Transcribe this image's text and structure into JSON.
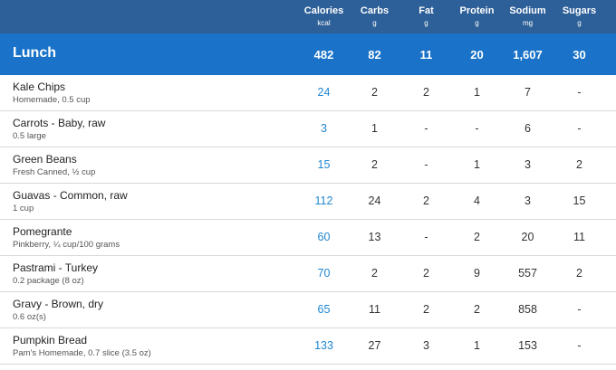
{
  "header": {
    "columns": [
      {
        "title": "Calories",
        "unit": "kcal"
      },
      {
        "title": "Carbs",
        "unit": "g"
      },
      {
        "title": "Fat",
        "unit": "g"
      },
      {
        "title": "Protein",
        "unit": "g"
      },
      {
        "title": "Sodium",
        "unit": "mg"
      },
      {
        "title": "Sugars",
        "unit": "g"
      }
    ]
  },
  "meal": {
    "title": "Lunch",
    "totals": [
      "482",
      "82",
      "11",
      "20",
      "1,607",
      "30"
    ]
  },
  "foods": [
    {
      "name": "Kale Chips",
      "desc": "Homemade, 0.5 cup",
      "values": [
        "24",
        "2",
        "2",
        "1",
        "7",
        "-"
      ]
    },
    {
      "name": "Carrots - Baby, raw",
      "desc": "0.5 large",
      "values": [
        "3",
        "1",
        "-",
        "-",
        "6",
        "-"
      ]
    },
    {
      "name": "Green Beans",
      "desc": "Fresh Canned, ½ cup",
      "values": [
        "15",
        "2",
        "-",
        "1",
        "3",
        "2"
      ]
    },
    {
      "name": "Guavas - Common, raw",
      "desc": "1 cup",
      "values": [
        "112",
        "24",
        "2",
        "4",
        "3",
        "15"
      ]
    },
    {
      "name": "Pomegrante",
      "desc": "Pinkberry, ¼ cup/100 grams",
      "values": [
        "60",
        "13",
        "-",
        "2",
        "20",
        "11"
      ]
    },
    {
      "name": "Pastrami - Turkey",
      "desc": "0.2 package (8 oz)",
      "values": [
        "70",
        "2",
        "2",
        "9",
        "557",
        "2"
      ]
    },
    {
      "name": "Gravy - Brown, dry",
      "desc": "0.6 oz(s)",
      "values": [
        "65",
        "11",
        "2",
        "2",
        "858",
        "-"
      ]
    },
    {
      "name": "Pumpkin Bread",
      "desc": "Pam's Homemade, 0.7 slice (3.5 oz)",
      "values": [
        "133",
        "27",
        "3",
        "1",
        "153",
        "-"
      ]
    }
  ]
}
